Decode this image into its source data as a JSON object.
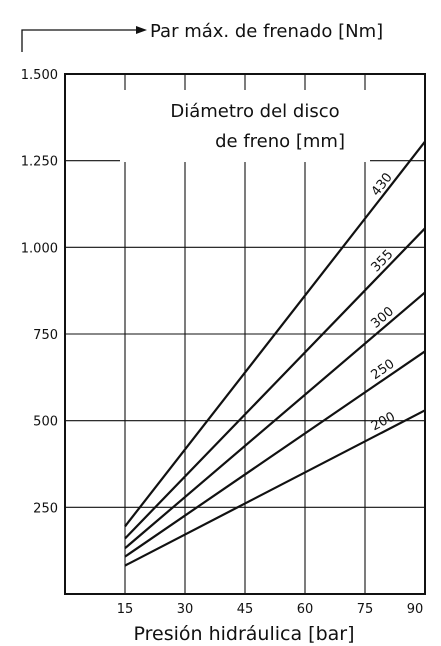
{
  "chart_data": {
    "type": "line",
    "ylabel": "Par máx. de frenado [Nm]",
    "xlabel": "Presión hidráulica [bar]",
    "legend_title_lines": [
      "Diámetro del disco",
      "de freno [mm]"
    ],
    "xlim": [
      0,
      90
    ],
    "ylim": [
      0,
      1500
    ],
    "x_ticks": [
      15,
      30,
      45,
      60,
      75,
      90
    ],
    "y_ticks": [
      250,
      500,
      750,
      1000,
      1250,
      1500
    ],
    "y_tick_labels": [
      "250",
      "500",
      "750",
      "1.000",
      "1.250",
      "1.500"
    ],
    "grid": true,
    "series": [
      {
        "name": "430",
        "points": [
          [
            15,
            195
          ],
          [
            90,
            1305
          ]
        ]
      },
      {
        "name": "355",
        "points": [
          [
            15,
            160
          ],
          [
            90,
            1055
          ]
        ]
      },
      {
        "name": "300",
        "points": [
          [
            15,
            132
          ],
          [
            90,
            870
          ]
        ]
      },
      {
        "name": "250",
        "points": [
          [
            15,
            108
          ],
          [
            90,
            700
          ]
        ]
      },
      {
        "name": "200",
        "points": [
          [
            15,
            82
          ],
          [
            90,
            530
          ]
        ]
      }
    ]
  }
}
